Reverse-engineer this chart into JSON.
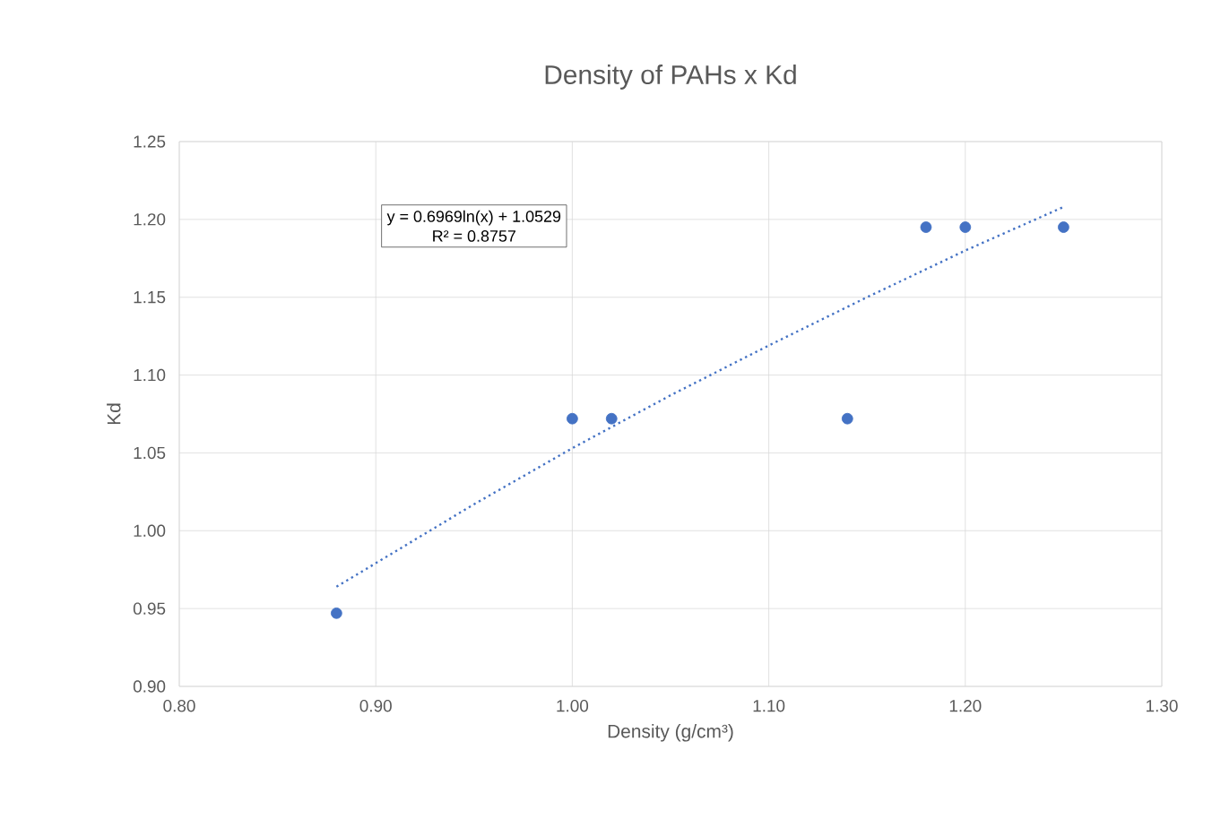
{
  "chart_data": {
    "type": "scatter",
    "title": "Density of PAHs x Kd",
    "xlabel": "Density (g/cm³)",
    "ylabel": "Kd",
    "xlim": [
      0.8,
      1.3
    ],
    "ylim": [
      0.9,
      1.25
    ],
    "xticks": [
      {
        "value": 0.8,
        "label": "0.80"
      },
      {
        "value": 0.9,
        "label": "0.90"
      },
      {
        "value": 1.0,
        "label": "1.00"
      },
      {
        "value": 1.1,
        "label": "1.10"
      },
      {
        "value": 1.2,
        "label": "1.20"
      },
      {
        "value": 1.3,
        "label": "1.30"
      }
    ],
    "yticks": [
      {
        "value": 0.9,
        "label": "0.90"
      },
      {
        "value": 0.95,
        "label": "0.95"
      },
      {
        "value": 1.0,
        "label": "1.00"
      },
      {
        "value": 1.05,
        "label": "1.05"
      },
      {
        "value": 1.1,
        "label": "1.10"
      },
      {
        "value": 1.15,
        "label": "1.15"
      },
      {
        "value": 1.2,
        "label": "1.20"
      },
      {
        "value": 1.25,
        "label": "1.25"
      }
    ],
    "grid": true,
    "annotations": [
      "y = 0.6969ln(x) + 1.0529",
      "R² = 0.8757"
    ],
    "series": [
      {
        "color": "#4472c4",
        "marker": "circle",
        "x": [
          0.88,
          1.0,
          1.02,
          1.14,
          1.18,
          1.2,
          1.25
        ],
        "values": [
          0.947,
          1.072,
          1.072,
          1.072,
          1.195,
          1.195,
          1.195
        ]
      },
      {
        "type": "line",
        "color": "#4472c4",
        "marker": "none",
        "line_style": "dotted",
        "x": [
          0.88,
          0.95,
          1.0,
          1.05,
          1.1,
          1.15,
          1.2,
          1.25
        ],
        "values": [
          0.964,
          1.017,
          1.053,
          1.087,
          1.119,
          1.15,
          1.18,
          1.208
        ]
      }
    ]
  }
}
